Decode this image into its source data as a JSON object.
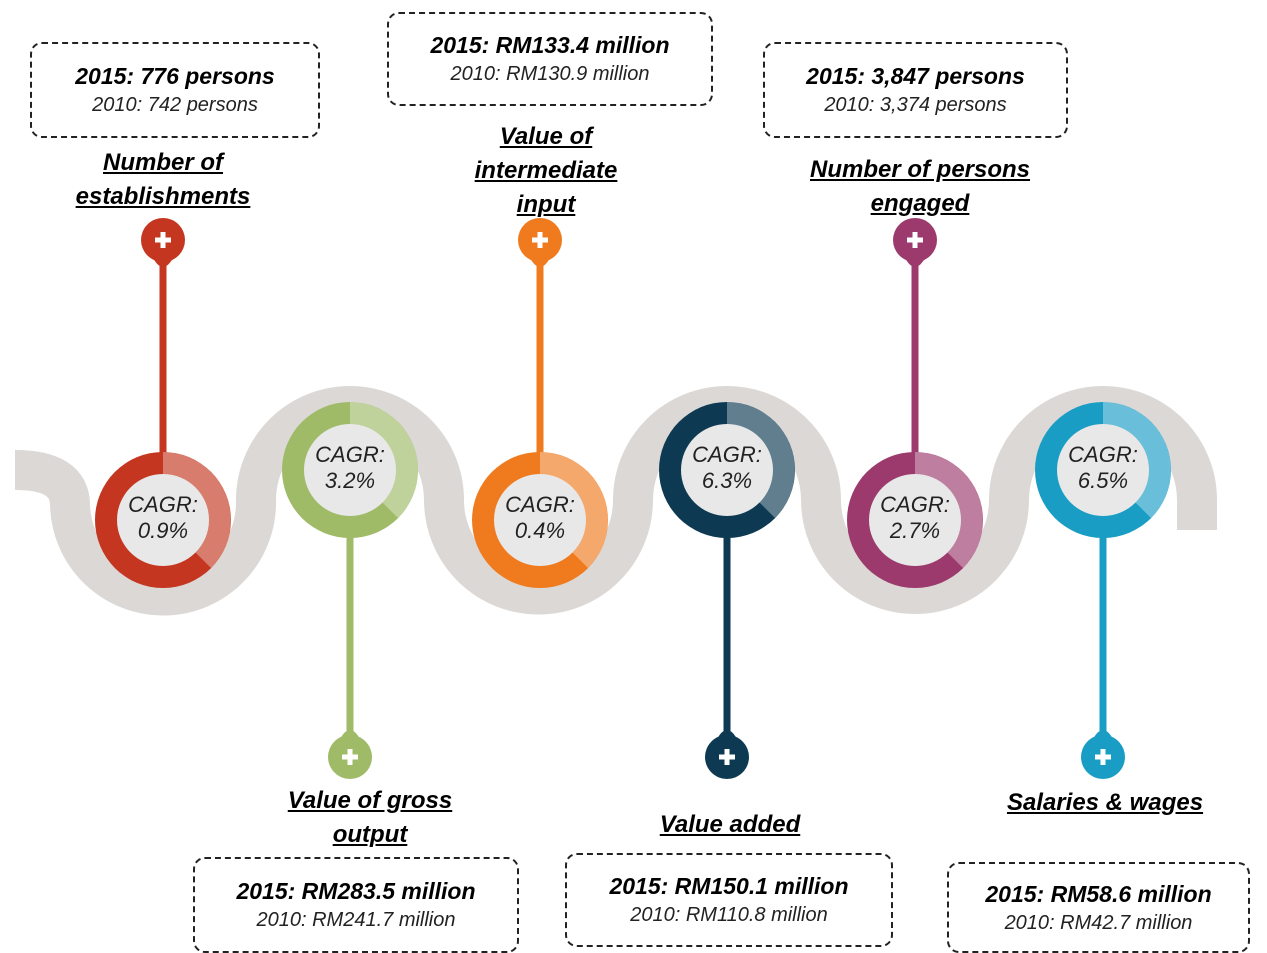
{
  "items": [
    {
      "label": "Number of establishments",
      "current": "2015: 776 persons",
      "previous": "2010: 742 persons",
      "cagr_label": "CAGR:",
      "cagr": "0.9%",
      "color": "#c4361f"
    },
    {
      "label": "Value of gross output",
      "current": "2015: RM283.5 million",
      "previous": "2010: RM241.7 million",
      "cagr_label": "CAGR:",
      "cagr": "3.2%",
      "color": "#9fbb68"
    },
    {
      "label": "Value of intermediate input",
      "current": "2015: RM133.4 million",
      "previous": "2010: RM130.9 million",
      "cagr_label": "CAGR:",
      "cagr": "0.4%",
      "color": "#f07a1e"
    },
    {
      "label": "Value added",
      "current": "2015: RM150.1 million",
      "previous": "2010: RM110.8 million",
      "cagr_label": "CAGR:",
      "cagr": "6.3%",
      "color": "#0d3a52"
    },
    {
      "label": "Number of persons engaged",
      "current": "2015: 3,847 persons",
      "previous": "2010: 3,374 persons",
      "cagr_label": "CAGR:",
      "cagr": "2.7%",
      "color": "#9c3a6d"
    },
    {
      "label": "Salaries & wages",
      "current": "2015: RM58.6 million",
      "previous": "2010: RM42.7 million",
      "cagr_label": "CAGR:",
      "cagr": "6.5%",
      "color": "#1a9dc5"
    }
  ]
}
